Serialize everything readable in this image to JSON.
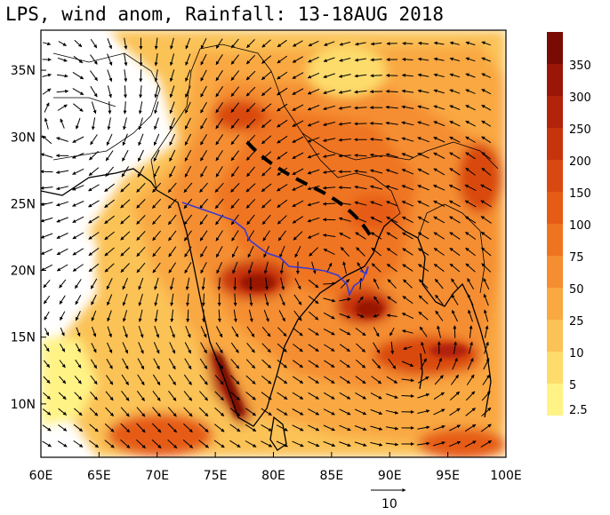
{
  "title": "LPS, wind anom, Rainfall: 13-18AUG 2018",
  "map": {
    "lon_range": [
      60,
      100
    ],
    "lat_range": [
      6,
      38
    ],
    "lon_ticks": [
      "60E",
      "65E",
      "70E",
      "75E",
      "80E",
      "85E",
      "90E",
      "95E",
      "100E"
    ],
    "lat_ticks": [
      "35N",
      "30N",
      "25N",
      "20N",
      "15N",
      "10N"
    ],
    "layers": [
      "rainfall-shading",
      "wind-anomaly-vectors",
      "coastlines",
      "country-borders",
      "lps-track",
      "monsoon-trough"
    ],
    "lps_track_color": "#3a3ad0",
    "monsoon_trough_color": "#000000"
  },
  "colorbar": {
    "labels": [
      "350",
      "300",
      "250",
      "200",
      "150",
      "100",
      "75",
      "50",
      "25",
      "10",
      "5",
      "2.5"
    ],
    "colors": [
      "#7a0a04",
      "#9a1606",
      "#b22409",
      "#c7340c",
      "#d94811",
      "#e65c16",
      "#ef7420",
      "#f58e30",
      "#f9a842",
      "#fbc256",
      "#fddc6c",
      "#fff386"
    ]
  },
  "vector_reference": {
    "label": "10"
  }
}
